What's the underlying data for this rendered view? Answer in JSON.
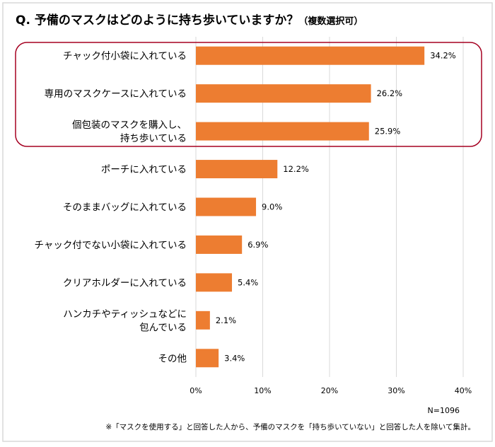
{
  "chart_data": {
    "type": "bar",
    "orientation": "horizontal",
    "title": "Q. 予備のマスクはどのように持ち歩いていますか？",
    "subtitle": "（複数選択可）",
    "categories": [
      [
        "チャック付小袋に入れている"
      ],
      [
        "専用のマスクケースに入れている"
      ],
      [
        "個包装のマスクを購入し、",
        "持ち歩いている"
      ],
      [
        "ポーチに入れている"
      ],
      [
        "そのままバッグに入れている"
      ],
      [
        "チャック付でない小袋に入れている"
      ],
      [
        "クリアホルダーに入れている"
      ],
      [
        "ハンカチやティッシュなどに",
        "包んでいる"
      ],
      [
        "その他"
      ]
    ],
    "values": [
      34.2,
      26.2,
      25.9,
      12.2,
      9.0,
      6.9,
      5.4,
      2.1,
      3.4
    ],
    "value_labels": [
      "34.2%",
      "26.2%",
      "25.9%",
      "12.2%",
      "9.0%",
      "6.9%",
      "5.4%",
      "2.1%",
      "3.4%"
    ],
    "xlim": [
      0,
      40
    ],
    "xticks": [
      0,
      10,
      20,
      30,
      40
    ],
    "xtick_labels": [
      "0%",
      "10%",
      "20%",
      "30%",
      "40%"
    ],
    "grid": true,
    "highlighted_categories": [
      0,
      1,
      2
    ],
    "bar_color": "#ED7D31",
    "highlight_color": "#A50021",
    "sample_size": "N=1096",
    "footnote": "※「マスクを使用する」と回答した人から、予備のマスクを「持ち歩いていない」と回答した人を除いて集計。"
  }
}
